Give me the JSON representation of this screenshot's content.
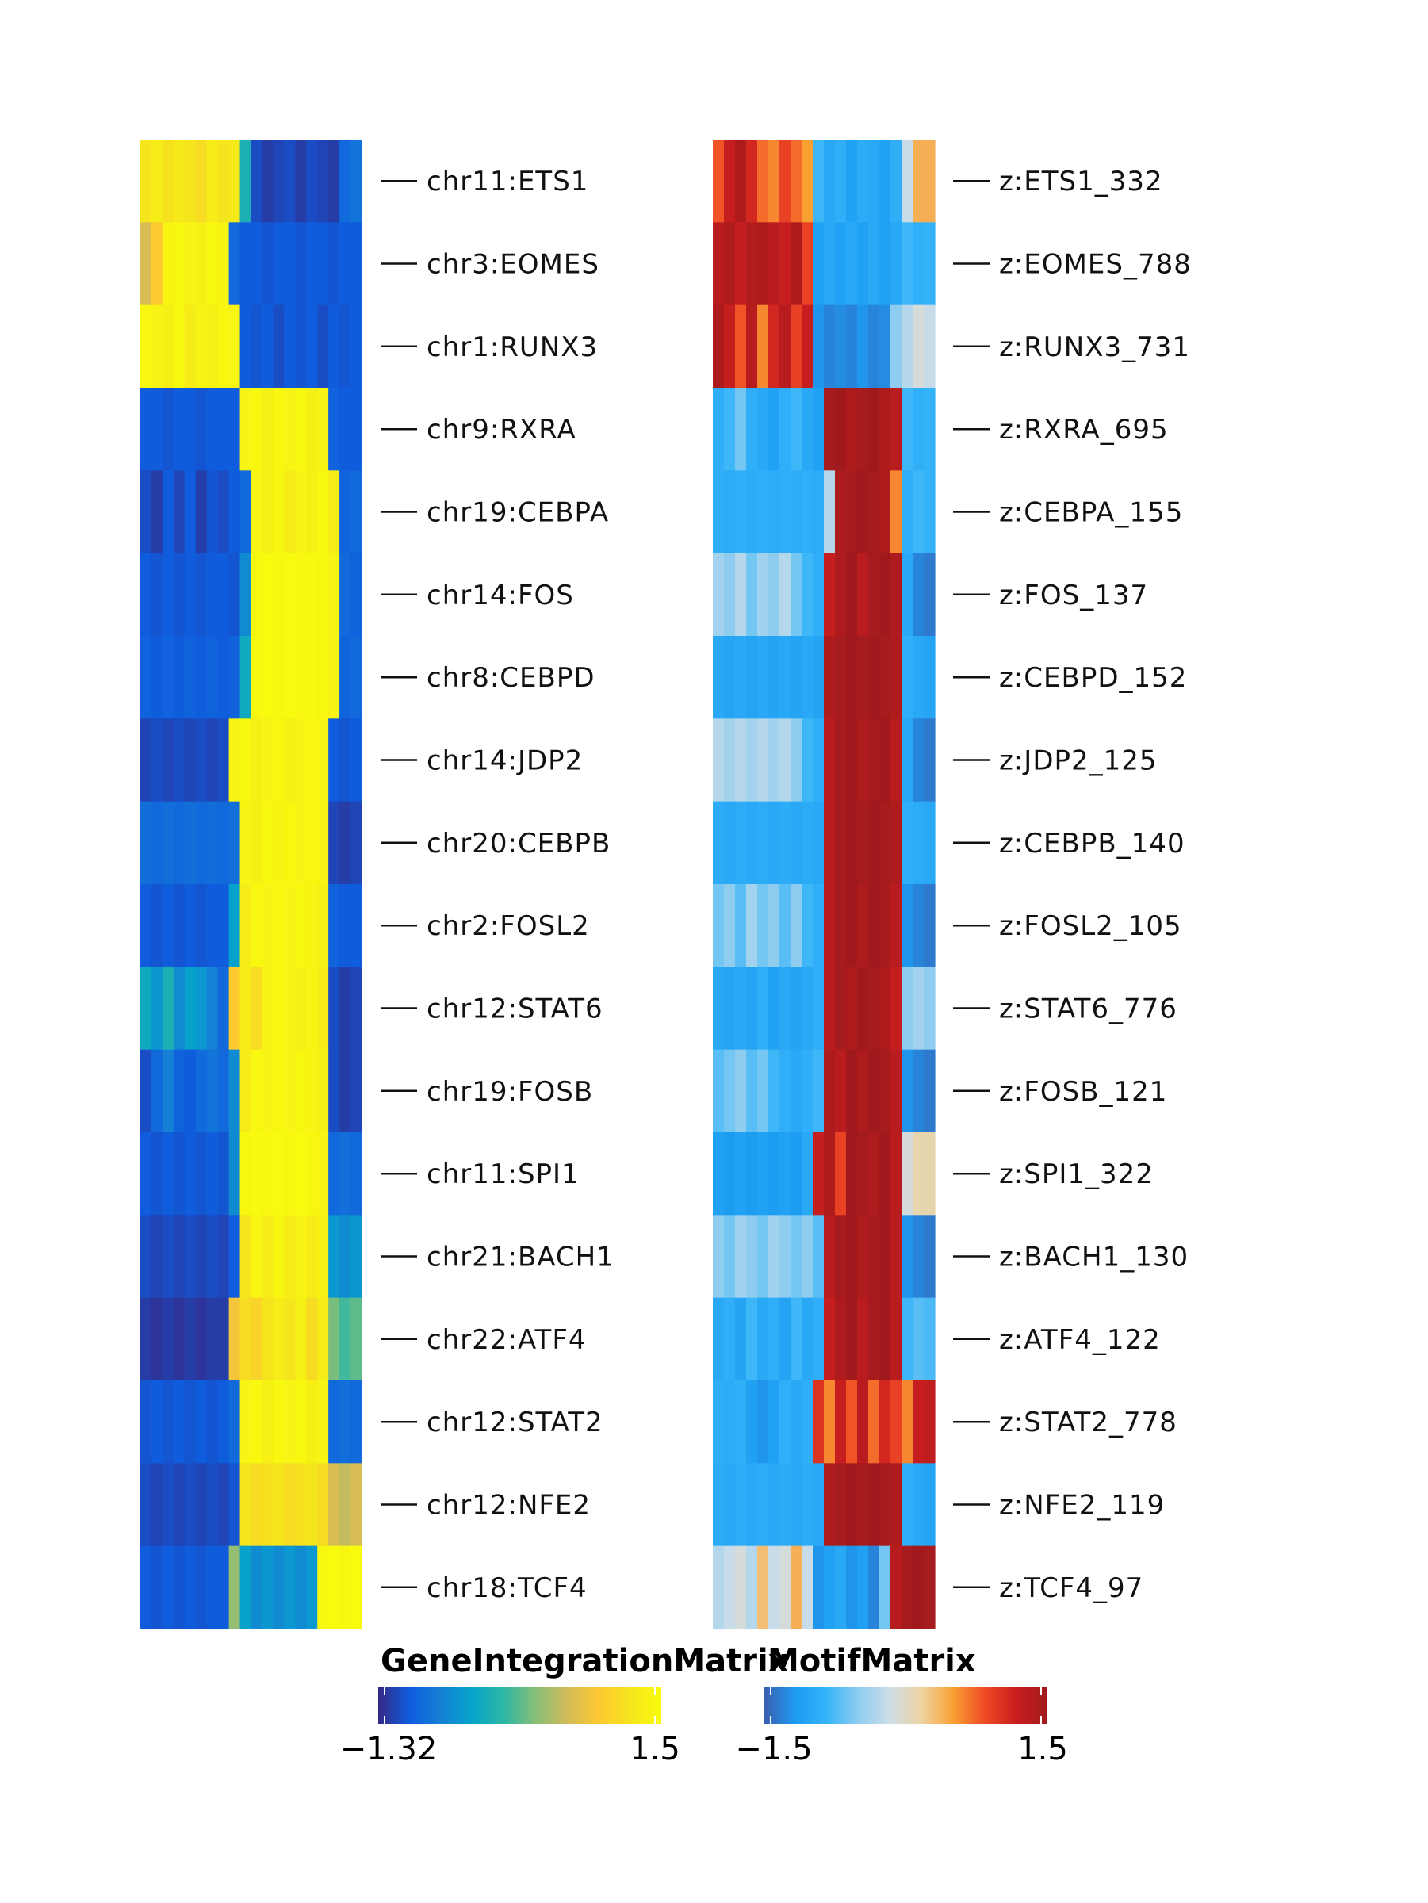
{
  "chart_data": [
    {
      "type": "heatmap",
      "name": "GeneIntegrationMatrix",
      "rows": [
        "chr11:ETS1",
        "chr3:EOMES",
        "chr1:RUNX3",
        "chr9:RXRA",
        "chr19:CEBPA",
        "chr14:FOS",
        "chr8:CEBPD",
        "chr14:JDP2",
        "chr20:CEBPB",
        "chr2:FOSL2",
        "chr12:STAT6",
        "chr19:FOSB",
        "chr11:SPI1",
        "chr21:BACH1",
        "chr22:ATF4",
        "chr12:STAT2",
        "chr12:NFE2",
        "chr18:TCF4"
      ],
      "columns": 20,
      "values": [
        [
          1.2,
          1.3,
          1.15,
          1.25,
          1.2,
          1.1,
          1.3,
          1.2,
          1.25,
          -0.2,
          -1.1,
          -1.2,
          -1.15,
          -1.1,
          -1.2,
          -1.1,
          -1.15,
          -1.2,
          -0.9,
          -0.8
        ],
        [
          0.6,
          0.9,
          1.4,
          1.45,
          1.4,
          1.35,
          1.45,
          1.4,
          -0.9,
          -1.0,
          -1.0,
          -1.05,
          -1.0,
          -1.0,
          -1.05,
          -1.0,
          -1.0,
          -1.05,
          -1.0,
          -1.0
        ],
        [
          1.45,
          1.4,
          1.35,
          1.45,
          1.3,
          1.4,
          1.35,
          1.45,
          1.4,
          -1.0,
          -1.05,
          -1.0,
          -1.1,
          -1.0,
          -1.05,
          -1.0,
          -1.1,
          -1.0,
          -1.05,
          -1.0
        ],
        [
          -1.0,
          -1.0,
          -1.05,
          -1.0,
          -1.0,
          -1.05,
          -1.0,
          -1.0,
          -1.0,
          1.4,
          1.45,
          1.35,
          1.45,
          1.4,
          1.45,
          1.35,
          1.4,
          -0.95,
          -1.0,
          -1.0
        ],
        [
          -1.1,
          -1.2,
          -1.0,
          -1.15,
          -1.0,
          -1.2,
          -1.05,
          -1.1,
          -1.0,
          -0.9,
          1.4,
          1.35,
          1.45,
          1.3,
          1.4,
          1.35,
          1.45,
          1.3,
          -0.95,
          -0.9
        ],
        [
          -1.0,
          -1.05,
          -1.0,
          -1.05,
          -1.0,
          -1.05,
          -1.0,
          -1.0,
          -1.05,
          -0.6,
          1.45,
          1.5,
          1.45,
          1.5,
          1.45,
          1.5,
          1.45,
          1.4,
          -0.9,
          -0.95
        ],
        [
          -0.95,
          -1.0,
          -0.95,
          -1.0,
          -0.95,
          -1.0,
          -0.95,
          -1.0,
          -0.95,
          -0.3,
          1.45,
          1.5,
          1.45,
          1.5,
          1.45,
          1.5,
          1.45,
          1.4,
          -0.95,
          -0.9
        ],
        [
          -1.15,
          -1.1,
          -1.15,
          -1.1,
          -1.15,
          -1.1,
          -1.15,
          -1.1,
          1.4,
          1.45,
          1.35,
          1.4,
          1.45,
          1.35,
          1.4,
          1.45,
          1.4,
          -1.0,
          -1.05,
          -1.0
        ],
        [
          -0.85,
          -0.9,
          -0.85,
          -0.9,
          -0.85,
          -0.9,
          -0.85,
          -0.9,
          -0.85,
          1.4,
          1.35,
          1.45,
          1.4,
          1.45,
          1.4,
          1.45,
          1.4,
          -1.15,
          -1.2,
          -1.15
        ],
        [
          -1.0,
          -1.05,
          -1.0,
          -1.05,
          -1.0,
          -1.05,
          -1.0,
          -1.0,
          -0.4,
          1.3,
          1.45,
          1.4,
          1.45,
          1.4,
          1.45,
          1.4,
          1.35,
          -0.95,
          -1.0,
          -1.0
        ],
        [
          -0.3,
          -0.5,
          -0.2,
          -0.6,
          -0.4,
          -0.5,
          -0.7,
          -0.9,
          0.9,
          1.3,
          1.1,
          1.4,
          1.45,
          1.4,
          1.35,
          1.4,
          1.3,
          -1.1,
          -1.2,
          -1.15
        ],
        [
          -1.1,
          -0.9,
          -0.7,
          -0.95,
          -1.0,
          -0.9,
          -0.8,
          -0.9,
          -0.6,
          1.3,
          1.45,
          1.4,
          1.45,
          1.4,
          1.45,
          1.4,
          1.35,
          -1.1,
          -1.2,
          -1.15
        ],
        [
          -1.0,
          -1.05,
          -1.0,
          -1.05,
          -1.0,
          -1.05,
          -1.0,
          -1.05,
          -0.6,
          1.45,
          1.5,
          1.45,
          1.5,
          1.45,
          1.5,
          1.45,
          1.4,
          -0.9,
          -0.85,
          -0.9
        ],
        [
          -1.1,
          -1.15,
          -1.1,
          -1.15,
          -1.1,
          -1.15,
          -1.1,
          -1.15,
          -1.0,
          1.2,
          1.4,
          1.3,
          1.45,
          1.3,
          1.4,
          1.3,
          1.35,
          -0.5,
          -0.6,
          -0.5
        ],
        [
          -1.2,
          -1.25,
          -1.2,
          -1.25,
          -1.2,
          -1.25,
          -1.2,
          -1.2,
          0.8,
          1.1,
          1.0,
          1.2,
          1.3,
          1.2,
          1.35,
          1.1,
          1.3,
          0.2,
          0.0,
          0.1
        ],
        [
          -1.05,
          -1.0,
          -1.05,
          -1.0,
          -1.05,
          -1.0,
          -1.05,
          -1.0,
          -0.9,
          1.4,
          1.45,
          1.35,
          1.45,
          1.4,
          1.45,
          1.35,
          1.4,
          -0.9,
          -0.85,
          -0.9
        ],
        [
          -1.1,
          -1.15,
          -1.1,
          -1.15,
          -1.1,
          -1.15,
          -1.1,
          -1.15,
          -1.05,
          1.2,
          1.1,
          1.15,
          1.2,
          1.1,
          1.15,
          1.2,
          1.1,
          0.6,
          0.5,
          0.6
        ],
        [
          -1.0,
          -1.05,
          -1.0,
          -1.05,
          -1.0,
          -1.05,
          -1.0,
          -1.0,
          0.3,
          -0.4,
          -0.6,
          -0.5,
          -0.6,
          -0.5,
          -0.6,
          -0.5,
          1.45,
          1.5,
          1.45,
          1.5
        ]
      ],
      "colorbar": {
        "title": "GeneIntegrationMatrix",
        "min": -1.32,
        "max": 1.5,
        "min_label": "−1.32",
        "max_label": "1.5"
      },
      "colors": [
        "#352A87",
        "#0F5CDD",
        "#1481D6",
        "#06A4CA",
        "#2EB7A4",
        "#87BF77",
        "#D1BB59",
        "#FEC832",
        "#F5E41D",
        "#F9FB0E"
      ]
    },
    {
      "type": "heatmap",
      "name": "MotifMatrix",
      "rows": [
        "z:ETS1_332",
        "z:EOMES_788",
        "z:RUNX3_731",
        "z:RXRA_695",
        "z:CEBPA_155",
        "z:FOS_137",
        "z:CEBPD_152",
        "z:JDP2_125",
        "z:CEBPB_140",
        "z:FOSL2_105",
        "z:STAT6_776",
        "z:FOSB_121",
        "z:SPI1_322",
        "z:BACH1_130",
        "z:ATF4_122",
        "z:STAT2_778",
        "z:NFE2_119",
        "z:TCF4_97"
      ],
      "columns": 20,
      "values": [
        [
          0.8,
          1.2,
          1.4,
          1.1,
          0.7,
          0.6,
          0.9,
          0.7,
          0.5,
          -0.8,
          -1.0,
          -0.9,
          -1.1,
          -0.95,
          -1.0,
          -1.1,
          -0.9,
          -0.2,
          0.4,
          0.4
        ],
        [
          1.3,
          1.4,
          1.2,
          1.35,
          1.4,
          1.3,
          1.2,
          1.4,
          0.9,
          -1.1,
          -1.0,
          -1.1,
          -1.0,
          -1.1,
          -1.0,
          -1.1,
          -1.0,
          -0.8,
          -0.9,
          -0.85
        ],
        [
          1.4,
          1.2,
          0.8,
          1.3,
          0.6,
          1.1,
          1.3,
          0.9,
          1.2,
          -1.2,
          -1.3,
          -1.25,
          -1.3,
          -1.2,
          -1.3,
          -1.25,
          -0.5,
          -0.3,
          -0.1,
          -0.2
        ],
        [
          -0.9,
          -0.8,
          -0.6,
          -0.9,
          -1.0,
          -1.1,
          -0.9,
          -0.8,
          -1.0,
          -1.1,
          1.45,
          1.5,
          1.4,
          1.45,
          1.5,
          1.4,
          1.3,
          -0.8,
          -0.9,
          -0.85
        ],
        [
          -0.9,
          -0.95,
          -0.9,
          -0.95,
          -0.9,
          -0.95,
          -0.9,
          -0.95,
          -0.9,
          -0.95,
          -0.3,
          1.4,
          1.45,
          1.5,
          1.45,
          1.4,
          0.6,
          -0.9,
          -0.8,
          -0.85
        ],
        [
          -0.4,
          -0.5,
          -0.3,
          -0.6,
          -0.4,
          -0.5,
          -0.3,
          -0.6,
          -0.8,
          -0.9,
          1.2,
          1.4,
          1.5,
          1.3,
          1.45,
          1.5,
          1.4,
          -1.0,
          -1.3,
          -1.35
        ],
        [
          -1.0,
          -1.05,
          -1.0,
          -1.05,
          -1.0,
          -1.05,
          -1.0,
          -1.05,
          -1.0,
          -1.05,
          1.4,
          1.45,
          1.5,
          1.45,
          1.5,
          1.45,
          1.4,
          -0.9,
          -1.0,
          -1.05
        ],
        [
          -0.3,
          -0.4,
          -0.3,
          -0.4,
          -0.3,
          -0.4,
          -0.3,
          -0.5,
          -0.8,
          -0.9,
          1.3,
          1.45,
          1.5,
          1.4,
          1.45,
          1.5,
          1.3,
          -1.0,
          -1.3,
          -1.35
        ],
        [
          -0.95,
          -1.0,
          -0.95,
          -1.0,
          -0.95,
          -1.0,
          -0.95,
          -1.0,
          -0.95,
          -1.0,
          1.3,
          1.45,
          1.5,
          1.45,
          1.5,
          1.45,
          1.4,
          -0.9,
          -0.95,
          -1.0
        ],
        [
          -0.6,
          -0.5,
          -0.7,
          -0.4,
          -0.6,
          -0.5,
          -0.7,
          -0.5,
          -0.8,
          -0.9,
          1.3,
          1.45,
          1.5,
          1.4,
          1.5,
          1.45,
          1.3,
          -1.2,
          -1.3,
          -1.35
        ],
        [
          -1.0,
          -1.05,
          -1.0,
          -1.05,
          -0.9,
          -1.1,
          -1.0,
          -1.05,
          -1.0,
          -0.9,
          1.3,
          1.45,
          1.4,
          1.5,
          1.45,
          1.4,
          1.2,
          -0.5,
          -0.4,
          -0.5
        ],
        [
          -0.7,
          -0.6,
          -0.5,
          -0.7,
          -0.6,
          -0.8,
          -0.9,
          -1.0,
          -0.9,
          -0.8,
          1.4,
          1.3,
          1.5,
          1.4,
          1.5,
          1.45,
          1.3,
          -1.2,
          -1.3,
          -1.35
        ],
        [
          -1.1,
          -1.15,
          -1.1,
          -1.15,
          -1.1,
          -1.15,
          -1.1,
          -1.15,
          -1.0,
          1.2,
          1.4,
          0.9,
          1.5,
          1.45,
          1.4,
          1.5,
          1.3,
          -0.1,
          0.1,
          0.1
        ],
        [
          -0.5,
          -0.6,
          -0.4,
          -0.5,
          -0.6,
          -0.4,
          -0.5,
          -0.6,
          -0.5,
          -0.7,
          1.3,
          1.45,
          1.5,
          1.4,
          1.45,
          1.5,
          1.3,
          -1.2,
          -1.3,
          -1.35
        ],
        [
          -1.0,
          -0.9,
          -1.05,
          -0.8,
          -1.0,
          -0.9,
          -1.05,
          -0.8,
          -1.0,
          -0.9,
          1.2,
          1.4,
          1.5,
          1.3,
          1.45,
          1.5,
          1.3,
          -0.8,
          -0.7,
          -0.75
        ],
        [
          -0.9,
          -0.95,
          -0.9,
          -1.1,
          -1.2,
          -1.1,
          -0.9,
          -1.0,
          -0.9,
          1.0,
          0.6,
          1.2,
          0.8,
          1.3,
          0.7,
          1.1,
          0.9,
          0.6,
          1.2,
          1.25
        ],
        [
          -0.95,
          -1.0,
          -0.95,
          -1.0,
          -0.95,
          -1.0,
          -0.95,
          -1.0,
          -0.95,
          -1.0,
          1.4,
          1.45,
          1.5,
          1.45,
          1.5,
          1.45,
          1.4,
          -0.9,
          -1.0,
          -1.05
        ],
        [
          -0.3,
          -0.2,
          -0.1,
          -0.3,
          0.3,
          -0.2,
          -0.1,
          0.4,
          -0.2,
          -1.2,
          -1.1,
          -1.0,
          -1.2,
          -1.1,
          -1.3,
          -0.6,
          1.3,
          1.45,
          1.5,
          1.45
        ]
      ],
      "colorbar": {
        "title": "MotifMatrix",
        "min": -1.5,
        "max": 1.5,
        "min_label": "−1.5",
        "max_label": "1.5"
      },
      "colors": [
        "#3A5FB0",
        "#1C9CF2",
        "#35B4F9",
        "#8FCDF0",
        "#CDDDE8",
        "#EED3A0",
        "#F9A033",
        "#EF4A25",
        "#CA1E1E",
        "#A01A1D"
      ]
    }
  ]
}
